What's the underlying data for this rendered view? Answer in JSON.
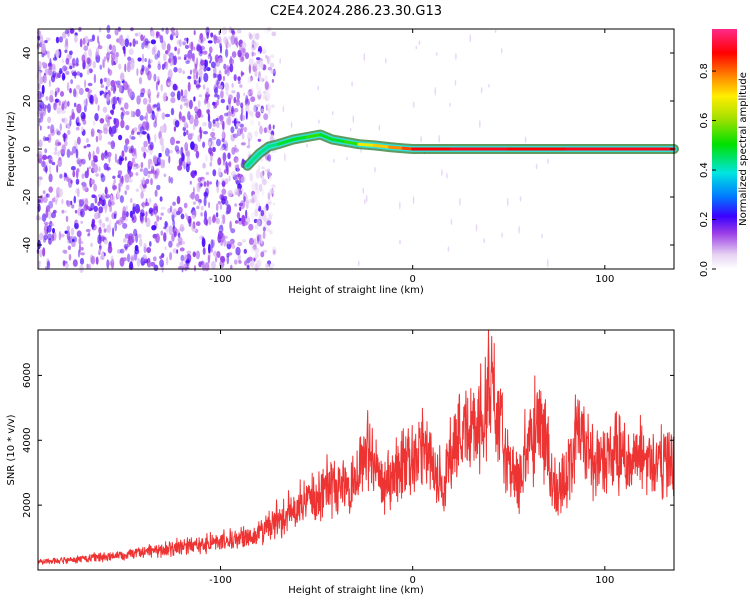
{
  "page": {
    "title": "C2E4.2024.286.23.30.G13"
  },
  "colorbar": {
    "label": "Normalized spectral amplitude",
    "ticks": [
      "0.0",
      "0.2",
      "0.4",
      "0.6",
      "0.8"
    ],
    "tick_values": [
      0.0,
      0.2,
      0.4,
      0.6,
      0.8
    ],
    "range": [
      0.0,
      0.97
    ]
  },
  "chart_data": [
    {
      "type": "heatmap",
      "title": "C2E4.2024.286.23.30.G13",
      "xlabel": "Height of straight line (km)",
      "ylabel": "Frequency (Hz)",
      "xlim": [
        -195,
        136
      ],
      "ylim": [
        -50,
        50
      ],
      "x_ticks": [
        -100,
        0,
        100
      ],
      "x_tick_labels": [
        "-100",
        "0",
        "100"
      ],
      "y_ticks": [
        -40,
        -20,
        0,
        20,
        40
      ],
      "y_tick_labels": [
        "-40",
        "-20",
        "0",
        "20",
        "40"
      ],
      "noise_region_x": [
        -195,
        -72
      ],
      "signal_track": {
        "x": [
          -86,
          -80,
          -75,
          -70,
          -62,
          -55,
          -48,
          -42,
          -35,
          -28,
          -20,
          -12,
          -5,
          0,
          20,
          50,
          80,
          110,
          136
        ],
        "y": [
          -7,
          -2,
          1,
          2,
          4,
          5,
          6,
          4,
          3,
          2,
          1.5,
          0.8,
          0.3,
          0,
          0,
          0,
          0,
          0,
          0
        ],
        "amplitude": [
          0.4,
          0.45,
          0.45,
          0.45,
          0.5,
          0.5,
          0.55,
          0.5,
          0.5,
          0.55,
          0.7,
          0.75,
          0.8,
          0.85,
          0.9,
          0.92,
          0.9,
          0.92,
          0.92
        ]
      },
      "colorbar_label": "Normalized spectral amplitude"
    },
    {
      "type": "line",
      "xlabel": "Height of straight line (km)",
      "ylabel": "SNR (10 * v/v)",
      "xlim": [
        -195,
        136
      ],
      "ylim": [
        0,
        7400
      ],
      "x_ticks": [
        -100,
        0,
        100
      ],
      "x_tick_labels": [
        "-100",
        "0",
        "100"
      ],
      "y_ticks": [
        2000,
        4000,
        6000
      ],
      "y_tick_labels": [
        "2000",
        "4000",
        "6000"
      ],
      "series": [
        {
          "color": "#ee3333",
          "x": [
            -195,
            -180,
            -160,
            -140,
            -120,
            -100,
            -90,
            -80,
            -70,
            -60,
            -50,
            -40,
            -30,
            -25,
            -20,
            -15,
            -10,
            -5,
            0,
            5,
            10,
            15,
            20,
            25,
            30,
            35,
            40,
            45,
            50,
            55,
            60,
            65,
            70,
            75,
            80,
            85,
            90,
            95,
            100,
            105,
            110,
            115,
            120,
            125,
            130,
            136
          ],
          "y": [
            250,
            300,
            400,
            550,
            700,
            850,
            950,
            1100,
            1500,
            1900,
            2300,
            2600,
            2800,
            3800,
            3200,
            2600,
            2900,
            3300,
            3300,
            3700,
            3200,
            2500,
            3600,
            4400,
            4300,
            4300,
            5800,
            4800,
            3000,
            2700,
            3600,
            4700,
            3400,
            2500,
            2700,
            4000,
            3900,
            3300,
            3400,
            3400,
            3500,
            3400,
            3500,
            3400,
            3300,
            3200
          ]
        }
      ]
    }
  ]
}
